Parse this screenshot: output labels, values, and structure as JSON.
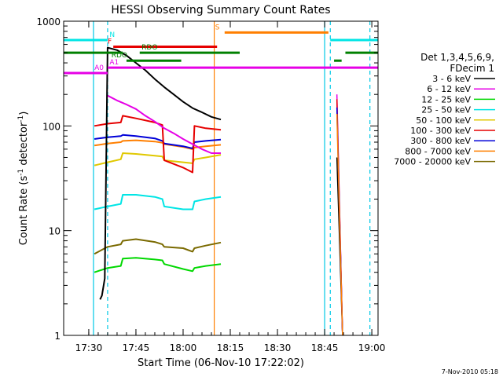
{
  "chart_data": {
    "type": "line",
    "title": "HESSI Observing Summary Count Rates",
    "xlabel": "Start Time (06-Nov-10 17:22:02)",
    "ylabel_main": "Count Rate (s",
    "ylabel_sup1": "-1",
    "ylabel_mid": " detector",
    "ylabel_sup2": "-1",
    "ylabel_end": ")",
    "yscale": "log",
    "ylim": [
      1,
      1000
    ],
    "xlim": [
      17.367,
      19.033
    ],
    "x_unit": "hours UT",
    "x_ticks": [
      {
        "value": 17.5,
        "label": "17:30"
      },
      {
        "value": 17.75,
        "label": "17:45"
      },
      {
        "value": 18.0,
        "label": "18:00"
      },
      {
        "value": 18.25,
        "label": "18:15"
      },
      {
        "value": 18.5,
        "label": "18:30"
      },
      {
        "value": 18.75,
        "label": "18:45"
      },
      {
        "value": 19.0,
        "label": "19:00"
      }
    ],
    "y_ticks": [
      {
        "value": 1,
        "label": "1"
      },
      {
        "value": 10,
        "label": "10"
      },
      {
        "value": 100,
        "label": "100"
      },
      {
        "value": 1000,
        "label": "1000"
      }
    ],
    "legend": {
      "placement": "right",
      "header1": "Det 1,3,4,5,6,9,",
      "header2": "FDecim 1"
    },
    "series": [
      {
        "name": "3 - 6 keV",
        "color": "#000000",
        "x": [
          17.56,
          17.57,
          17.585,
          17.6,
          17.65,
          17.7,
          17.75,
          17.8,
          17.85,
          17.9,
          17.95,
          18.0,
          18.05,
          18.1,
          18.15,
          18.2
        ],
        "y": [
          2.2,
          2.4,
          3.5,
          560,
          530,
          470,
          400,
          340,
          280,
          235,
          200,
          170,
          148,
          135,
          122,
          115
        ]
      },
      {
        "name": "6 - 12 keV",
        "color": "#e600e6",
        "x": [
          17.6,
          17.65,
          17.7,
          17.75,
          17.8,
          17.85,
          17.9,
          17.95,
          18.0,
          18.05,
          18.1,
          18.15,
          18.2
        ],
        "y": [
          195,
          175,
          160,
          145,
          125,
          110,
          95,
          85,
          75,
          67,
          60,
          55,
          55
        ]
      },
      {
        "name": "12 - 25 keV",
        "color": "#00d800",
        "x": [
          17.53,
          17.6,
          17.67,
          17.68,
          17.75,
          17.85,
          17.89,
          17.9,
          18.0,
          18.05,
          18.06,
          18.12,
          18.2
        ],
        "y": [
          4.0,
          4.4,
          4.6,
          5.4,
          5.5,
          5.3,
          5.2,
          4.8,
          4.3,
          4.1,
          4.4,
          4.6,
          4.8
        ]
      },
      {
        "name": "25 - 50 keV",
        "color": "#00e5e5",
        "x": [
          17.53,
          17.6,
          17.67,
          17.68,
          17.75,
          17.85,
          17.89,
          17.9,
          18.0,
          18.05,
          18.06,
          18.12,
          18.2
        ],
        "y": [
          16,
          17,
          18,
          22,
          22,
          21,
          20,
          17,
          16,
          16,
          19,
          20,
          21
        ]
      },
      {
        "name": "50 - 100 keV",
        "color": "#e0c800",
        "x": [
          17.53,
          17.6,
          17.67,
          17.68,
          17.75,
          17.85,
          17.89,
          17.9,
          18.0,
          18.05,
          18.06,
          18.12,
          18.2
        ],
        "y": [
          42,
          45,
          48,
          55,
          54,
          52,
          51,
          47,
          45,
          44,
          48,
          50,
          53
        ]
      },
      {
        "name": "100 - 300 keV",
        "color": "#e60000",
        "x": [
          17.53,
          17.6,
          17.67,
          17.68,
          17.75,
          17.85,
          17.89,
          17.9,
          18.0,
          18.05,
          18.06,
          18.12,
          18.2
        ],
        "y": [
          100,
          105,
          108,
          125,
          118,
          108,
          102,
          47,
          40,
          36,
          100,
          95,
          92
        ]
      },
      {
        "name": "300 - 800 keV",
        "color": "#0000d8",
        "x": [
          17.53,
          17.6,
          17.67,
          17.68,
          17.75,
          17.85,
          17.89,
          17.9,
          18.0,
          18.05,
          18.06,
          18.12,
          18.2
        ],
        "y": [
          75,
          78,
          80,
          82,
          80,
          76,
          72,
          68,
          64,
          61,
          70,
          72,
          74
        ]
      },
      {
        "name": "800 - 7000 keV",
        "color": "#ff7f00",
        "x": [
          17.53,
          17.6,
          17.67,
          17.68,
          17.75,
          17.85,
          17.89,
          17.9,
          18.0,
          18.05,
          18.06,
          18.12,
          18.2
        ],
        "y": [
          65,
          68,
          70,
          72,
          73,
          71,
          69,
          67,
          63,
          60,
          62,
          64,
          66
        ]
      },
      {
        "name": "7000 - 20000 keV",
        "color": "#7a6a00",
        "x": [
          17.53,
          17.6,
          17.67,
          17.68,
          17.75,
          17.85,
          17.89,
          17.9,
          18.0,
          18.05,
          18.06,
          18.12,
          18.2
        ],
        "y": [
          6.0,
          7.0,
          7.4,
          8.0,
          8.3,
          7.8,
          7.4,
          7.0,
          6.8,
          6.3,
          6.8,
          7.2,
          7.7
        ]
      }
    ],
    "late_segment": {
      "x_start": 18.815,
      "x_end": 18.845,
      "values": [
        {
          "series": "3 - 6 keV",
          "start": 50,
          "end": 1
        },
        {
          "series": "6 - 12 keV",
          "start": 200,
          "end": 1
        },
        {
          "series": "100 - 300 keV",
          "start": 180,
          "end": 1
        },
        {
          "series": "300 - 800 keV",
          "start": 150,
          "end": 1
        },
        {
          "series": "800 - 7000 keV",
          "start": 130,
          "end": 1
        }
      ]
    },
    "flag_bars": [
      {
        "label": "N",
        "color": "#00e5e5",
        "level": 660,
        "segments": [
          [
            17.367,
            17.6
          ],
          [
            18.78,
            19.033
          ]
        ],
        "label_x": 17.61
      },
      {
        "label": "S",
        "color": "#ff7f00",
        "level": 780,
        "segments": [
          [
            18.22,
            18.77
          ]
        ],
        "label_x": 18.17
      },
      {
        "label": "F",
        "color": "#e60000",
        "level": 570,
        "segments": [
          [
            17.63,
            18.18
          ]
        ],
        "label_x": 17.6
      },
      {
        "label": "RDO",
        "color": "#008000",
        "level": 500,
        "segments": [
          [
            17.367,
            17.68
          ],
          [
            17.77,
            18.3
          ],
          [
            18.86,
            19.033
          ]
        ],
        "label_x": 17.78
      },
      {
        "label": "RDO",
        "color": "#008000",
        "level": 420,
        "segments": [
          [
            17.7,
            17.99
          ],
          [
            18.8,
            18.84
          ]
        ],
        "label_x": 17.62
      },
      {
        "label": "A0",
        "color": "#e600e6",
        "level": 320,
        "segments": [
          [
            17.367,
            17.6
          ]
        ],
        "label_x": 17.53
      },
      {
        "label": "A1",
        "color": "#e600e6",
        "level": 360,
        "segments": [
          [
            17.6,
            19.033
          ]
        ],
        "label_x": 17.61
      }
    ],
    "vertical_markers": [
      {
        "x": 17.6,
        "color": "#00c8e6",
        "style": "dashed"
      },
      {
        "x": 18.78,
        "color": "#00c8e6",
        "style": "dashed"
      },
      {
        "x": 18.99,
        "color": "#00c8e6",
        "style": "dashed"
      },
      {
        "x": 17.525,
        "color": "#00c8e6",
        "style": "solid"
      },
      {
        "x": 18.75,
        "color": "#00c8e6",
        "style": "solid"
      },
      {
        "x": 18.165,
        "color": "#ff7f00",
        "style": "solid"
      }
    ]
  },
  "footer": {
    "timestamp": "7-Nov-2010 05:18"
  }
}
